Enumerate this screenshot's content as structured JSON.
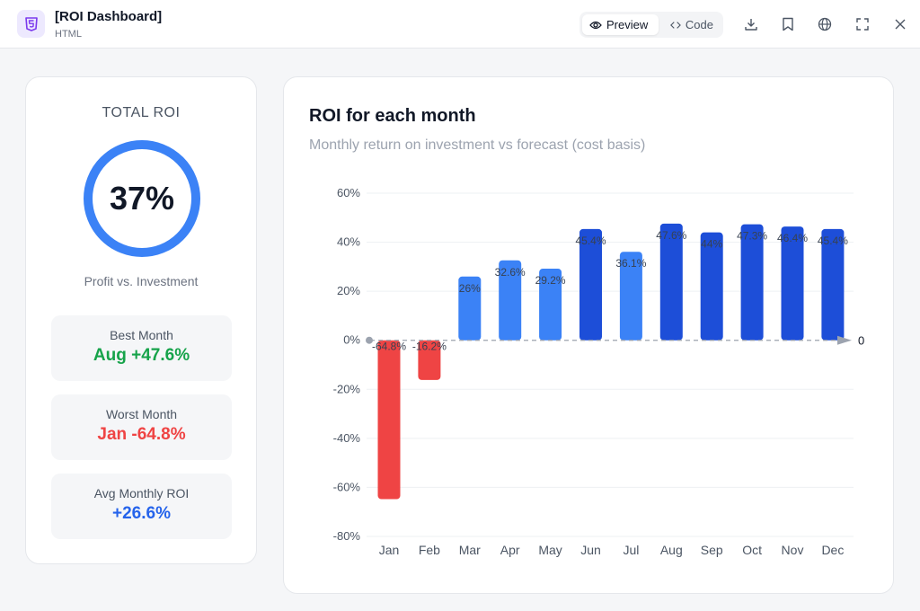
{
  "header": {
    "file_title": "[ROI Dashboard]",
    "file_type": "HTML",
    "preview_label": "Preview",
    "code_label": "Code",
    "icons": [
      "download-icon",
      "bookmark-icon",
      "globe-icon",
      "fullscreen-icon",
      "close-icon"
    ]
  },
  "summary": {
    "title": "TOTAL ROI",
    "total_value": "37%",
    "caption": "Profit vs. Investment",
    "best_label": "Best Month",
    "best_value": "Aug +47.6%",
    "worst_label": "Worst Month",
    "worst_value": "Jan -64.8%",
    "avg_label": "Avg Monthly ROI",
    "avg_value": "+26.6%"
  },
  "chart": {
    "title": "ROI for each month",
    "subtitle": "Monthly return on investment vs forecast (cost basis)"
  },
  "colors": {
    "accent": "#3b82f6",
    "negative": "#ef4444",
    "dark_blue": "#1d4ed8",
    "light_blue": "#3b82f6",
    "positive_text": "#16a34a"
  },
  "chart_data": {
    "type": "bar",
    "title": "ROI for each month",
    "subtitle": "Monthly return on investment vs forecast (cost basis)",
    "categories": [
      "Jan",
      "Feb",
      "Mar",
      "Apr",
      "May",
      "Jun",
      "Jul",
      "Aug",
      "Sep",
      "Oct",
      "Nov",
      "Dec"
    ],
    "values": [
      -64.8,
      -16.2,
      26,
      32.6,
      29.2,
      45.4,
      36.1,
      47.6,
      44,
      47.3,
      46.4,
      45.4
    ],
    "labels": [
      "-64.8%",
      "-16.2%",
      "26%",
      "32.6%",
      "29.2%",
      "45.4%",
      "36.1%",
      "47.6%",
      "44%",
      "47.3%",
      "46.4%",
      "45.4%"
    ],
    "bar_colors": [
      "#ef4444",
      "#ef4444",
      "#3b82f6",
      "#3b82f6",
      "#3b82f6",
      "#1d4ed8",
      "#3b82f6",
      "#1d4ed8",
      "#1d4ed8",
      "#1d4ed8",
      "#1d4ed8",
      "#1d4ed8"
    ],
    "ylim": [
      -80,
      60
    ],
    "yticks": [
      60,
      40,
      20,
      0,
      -20,
      -40,
      -60,
      -80
    ],
    "ytick_labels": [
      "60%",
      "40%",
      "20%",
      "0%",
      "-20%",
      "-40%",
      "-60%",
      "-80%"
    ],
    "zero_line_label": "0",
    "grid": true
  }
}
